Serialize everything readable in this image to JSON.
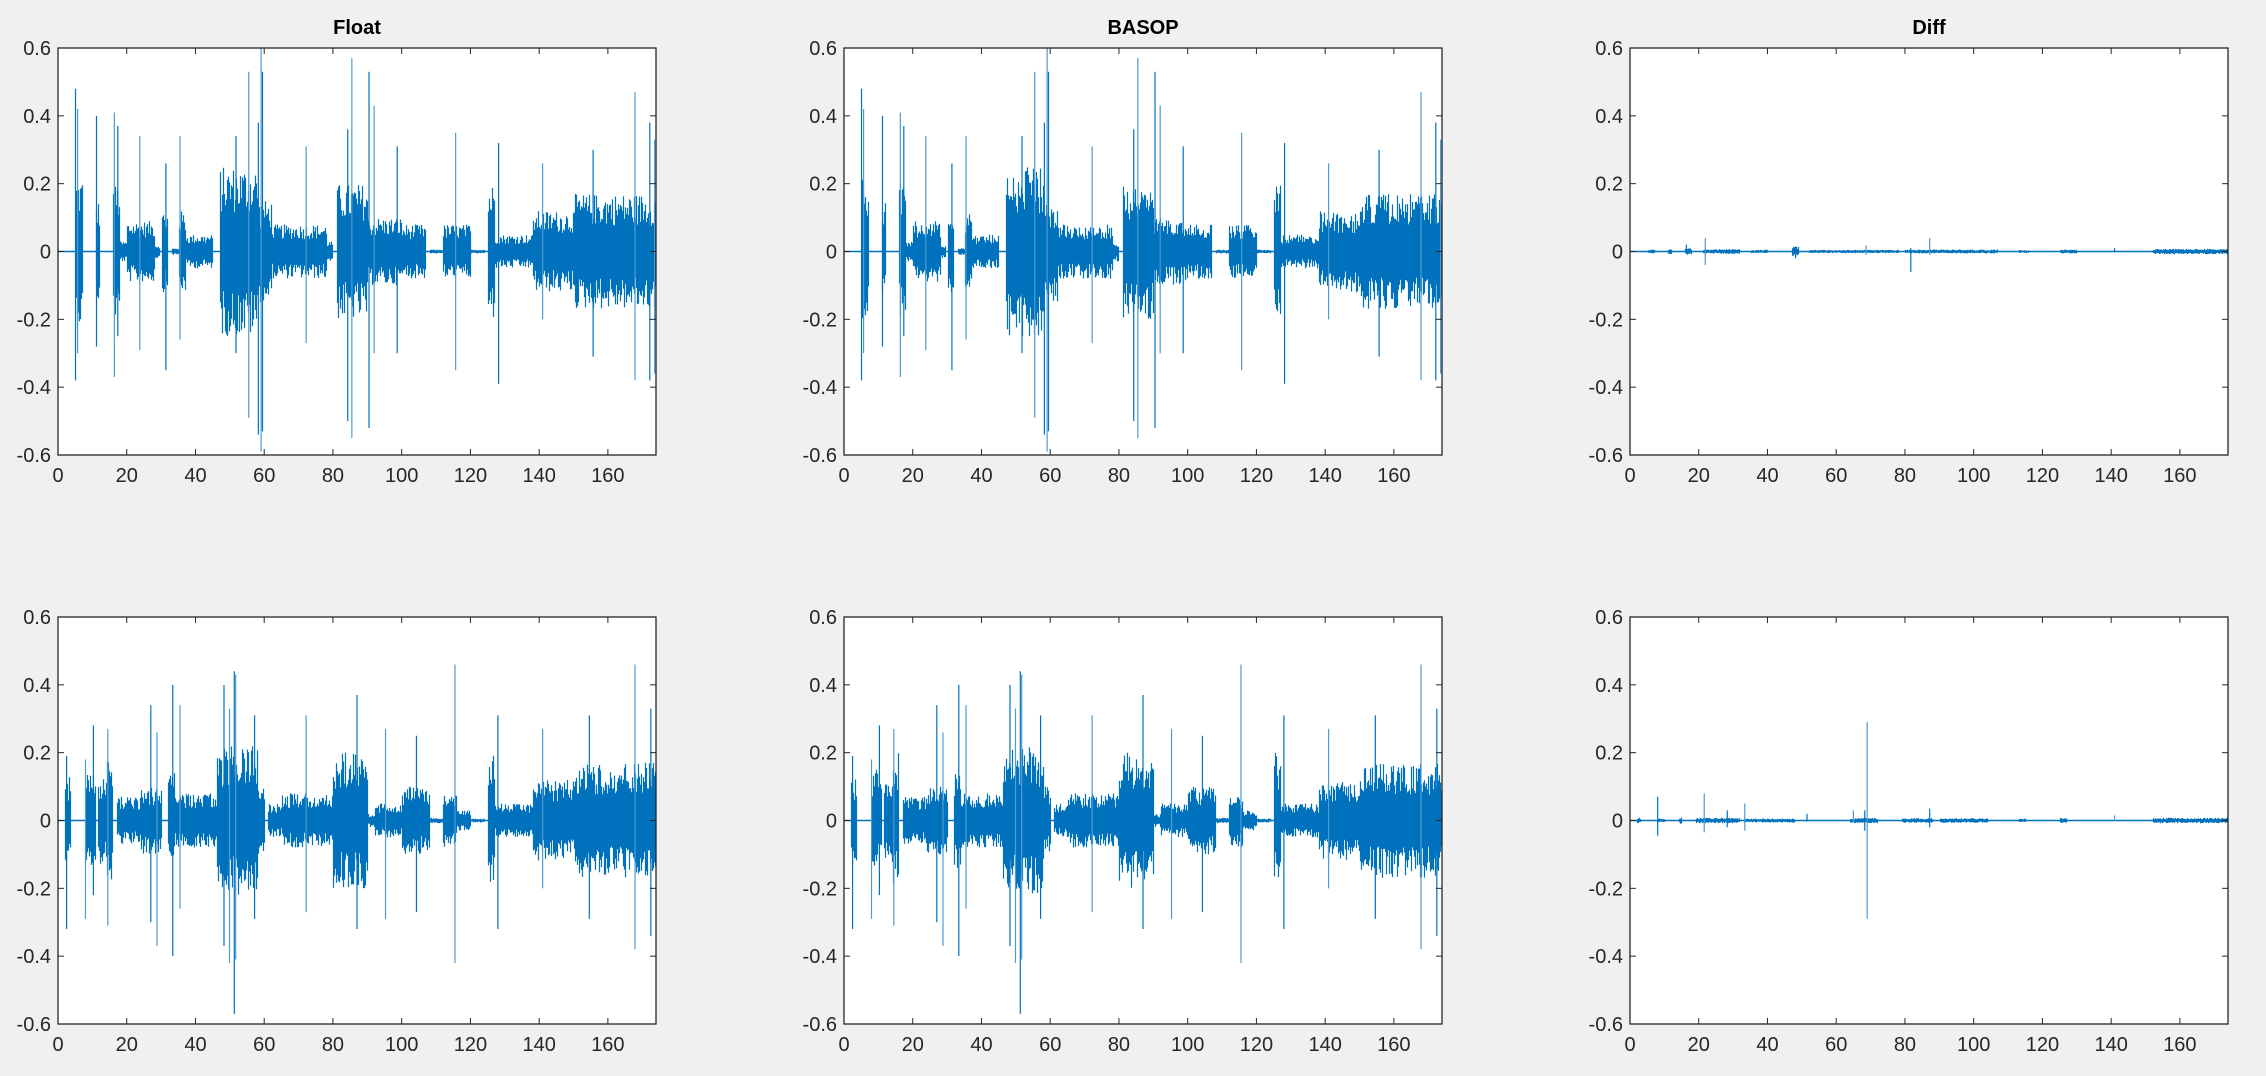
{
  "figure": {
    "background": "#f0f0f0",
    "line_color": "#0072bd",
    "spike_color": "#4f9bd3"
  },
  "chart_data": [
    {
      "type": "line",
      "title": "Float",
      "xlim": [
        0,
        174
      ],
      "ylim": [
        -0.6,
        0.6
      ],
      "grid": false,
      "xticks": [
        "0",
        "20",
        "40",
        "60",
        "80",
        "100",
        "120",
        "140",
        "160"
      ],
      "yticks": [
        "0.6",
        "0.4",
        "0.2",
        "0",
        "-0.2",
        "-0.4",
        "-0.6"
      ],
      "envelope": [
        [
          5,
          7,
          0.22
        ],
        [
          11,
          12,
          0.15
        ],
        [
          16,
          18,
          0.2
        ],
        [
          18,
          20,
          0.03
        ],
        [
          20,
          28,
          0.09
        ],
        [
          28,
          29.5,
          0.02
        ],
        [
          30,
          32,
          0.12
        ],
        [
          33,
          35,
          0.01
        ],
        [
          35,
          37,
          0.12
        ],
        [
          37,
          45,
          0.05
        ],
        [
          47,
          58,
          0.25
        ],
        [
          58,
          62,
          0.15
        ],
        [
          62,
          78,
          0.08
        ],
        [
          78,
          80,
          0.03
        ],
        [
          81,
          90,
          0.2
        ],
        [
          90,
          100,
          0.1
        ],
        [
          100,
          107,
          0.08
        ],
        [
          108,
          112,
          0.006
        ],
        [
          112,
          120,
          0.08
        ],
        [
          120,
          124,
          0.006
        ],
        [
          125,
          127,
          0.2
        ],
        [
          127,
          131,
          0.05
        ],
        [
          131,
          138,
          0.05
        ],
        [
          138,
          150,
          0.12
        ],
        [
          150,
          174,
          0.17
        ]
      ],
      "spikes": [
        [
          5.1,
          0.48,
          -0.38
        ],
        [
          5.7,
          0.42,
          -0.3
        ],
        [
          11.2,
          0.4,
          -0.28
        ],
        [
          16.4,
          0.41,
          -0.37
        ],
        [
          17.4,
          0.37,
          -0.25
        ],
        [
          23.8,
          0.34,
          -0.29
        ],
        [
          31.4,
          0.26,
          -0.35
        ],
        [
          35.5,
          0.34,
          -0.26
        ],
        [
          51.8,
          0.34,
          -0.3
        ],
        [
          55.5,
          0.53,
          -0.49
        ],
        [
          58.3,
          0.38,
          -0.54
        ],
        [
          59.1,
          0.6,
          -0.59
        ],
        [
          59.5,
          0.53,
          -0.53
        ],
        [
          72.2,
          0.31,
          -0.27
        ],
        [
          84.3,
          0.36,
          -0.5
        ],
        [
          85.5,
          0.57,
          -0.55
        ],
        [
          90.5,
          0.53,
          -0.52
        ],
        [
          92,
          0.43,
          -0.3
        ],
        [
          98.7,
          0.31,
          -0.3
        ],
        [
          115.7,
          0.35,
          -0.35
        ],
        [
          128.2,
          0.32,
          -0.39
        ],
        [
          141,
          0.26,
          -0.2
        ],
        [
          155.7,
          0.3,
          -0.31
        ],
        [
          167.9,
          0.47,
          -0.38
        ],
        [
          172.2,
          0.38,
          -0.38
        ],
        [
          173.6,
          0.33,
          -0.36
        ]
      ]
    },
    {
      "type": "line",
      "title": "BASOP",
      "xlim": [
        0,
        174
      ],
      "ylim": [
        -0.6,
        0.6
      ],
      "grid": false,
      "xticks": [
        "0",
        "20",
        "40",
        "60",
        "80",
        "100",
        "120",
        "140",
        "160"
      ],
      "yticks": [
        "0.6",
        "0.4",
        "0.2",
        "0",
        "-0.2",
        "-0.4",
        "-0.6"
      ],
      "envelope": [
        [
          5,
          7,
          0.22
        ],
        [
          11,
          12,
          0.15
        ],
        [
          16,
          18,
          0.2
        ],
        [
          18,
          20,
          0.03
        ],
        [
          20,
          28,
          0.09
        ],
        [
          28,
          29.5,
          0.02
        ],
        [
          30,
          32,
          0.12
        ],
        [
          33,
          35,
          0.01
        ],
        [
          35,
          37,
          0.12
        ],
        [
          37,
          45,
          0.05
        ],
        [
          47,
          58,
          0.25
        ],
        [
          58,
          62,
          0.15
        ],
        [
          62,
          78,
          0.08
        ],
        [
          78,
          80,
          0.03
        ],
        [
          81,
          90,
          0.2
        ],
        [
          90,
          100,
          0.1
        ],
        [
          100,
          107,
          0.08
        ],
        [
          108,
          112,
          0.006
        ],
        [
          112,
          120,
          0.08
        ],
        [
          120,
          124,
          0.006
        ],
        [
          125,
          127,
          0.2
        ],
        [
          127,
          131,
          0.05
        ],
        [
          131,
          138,
          0.05
        ],
        [
          138,
          150,
          0.12
        ],
        [
          150,
          174,
          0.17
        ]
      ],
      "spikes": [
        [
          5.1,
          0.48,
          -0.38
        ],
        [
          5.7,
          0.42,
          -0.3
        ],
        [
          11.2,
          0.4,
          -0.28
        ],
        [
          16.4,
          0.41,
          -0.37
        ],
        [
          17.4,
          0.37,
          -0.25
        ],
        [
          23.8,
          0.34,
          -0.29
        ],
        [
          31.4,
          0.26,
          -0.35
        ],
        [
          35.5,
          0.34,
          -0.26
        ],
        [
          51.8,
          0.34,
          -0.3
        ],
        [
          55.5,
          0.53,
          -0.49
        ],
        [
          58.3,
          0.38,
          -0.54
        ],
        [
          59.1,
          0.6,
          -0.59
        ],
        [
          59.5,
          0.53,
          -0.53
        ],
        [
          72.2,
          0.31,
          -0.27
        ],
        [
          84.3,
          0.36,
          -0.5
        ],
        [
          85.5,
          0.57,
          -0.55
        ],
        [
          90.5,
          0.53,
          -0.52
        ],
        [
          92,
          0.43,
          -0.3
        ],
        [
          98.7,
          0.31,
          -0.3
        ],
        [
          115.7,
          0.35,
          -0.35
        ],
        [
          128.2,
          0.32,
          -0.39
        ],
        [
          141,
          0.26,
          -0.2
        ],
        [
          155.7,
          0.3,
          -0.31
        ],
        [
          167.9,
          0.47,
          -0.38
        ],
        [
          172.2,
          0.38,
          -0.38
        ],
        [
          173.6,
          0.33,
          -0.36
        ]
      ]
    },
    {
      "type": "line",
      "title": "Diff",
      "xlim": [
        0,
        174
      ],
      "ylim": [
        -0.6,
        0.6
      ],
      "grid": false,
      "xticks": [
        "0",
        "20",
        "40",
        "60",
        "80",
        "100",
        "120",
        "140",
        "160"
      ],
      "yticks": [
        "0.6",
        "0.4",
        "0.2",
        "0",
        "-0.2",
        "-0.4",
        "-0.6"
      ],
      "envelope": [
        [
          5,
          7,
          0.006
        ],
        [
          11,
          12,
          0.008
        ],
        [
          16,
          18,
          0.01
        ],
        [
          21,
          32,
          0.007
        ],
        [
          35,
          40,
          0.005
        ],
        [
          47,
          49,
          0.015
        ],
        [
          52,
          78,
          0.005
        ],
        [
          80,
          107,
          0.006
        ],
        [
          113,
          116,
          0.005
        ],
        [
          125,
          130,
          0.006
        ],
        [
          152,
          174,
          0.008
        ]
      ],
      "spikes": [
        [
          16.4,
          0.02,
          -0.005
        ],
        [
          21.9,
          0.04,
          -0.04
        ],
        [
          48.2,
          0.015,
          -0.02
        ],
        [
          68.7,
          0.018,
          -0.01
        ],
        [
          81.7,
          0.01,
          -0.06
        ],
        [
          87.2,
          0.04,
          -0.01
        ],
        [
          141,
          0.01,
          -0.002
        ]
      ]
    },
    {
      "type": "line",
      "xlim": [
        0,
        174
      ],
      "ylim": [
        -0.6,
        0.6
      ],
      "grid": false,
      "xticks": [
        "0",
        "20",
        "40",
        "60",
        "80",
        "100",
        "120",
        "140",
        "160"
      ],
      "yticks": [
        "0.6",
        "0.4",
        "0.2",
        "0",
        "-0.2",
        "-0.4",
        "-0.6"
      ],
      "envelope": [
        [
          2,
          3.5,
          0.13
        ],
        [
          8,
          11,
          0.15
        ],
        [
          11.5,
          14,
          0.13
        ],
        [
          14,
          16,
          0.2
        ],
        [
          17,
          24,
          0.07
        ],
        [
          24,
          30,
          0.1
        ],
        [
          32,
          34,
          0.15
        ],
        [
          34,
          46,
          0.08
        ],
        [
          46,
          58,
          0.22
        ],
        [
          58,
          60,
          0.1
        ],
        [
          61,
          65,
          0.05
        ],
        [
          65,
          80,
          0.08
        ],
        [
          80,
          90,
          0.2
        ],
        [
          90,
          92,
          0.02
        ],
        [
          92,
          100,
          0.05
        ],
        [
          100,
          108,
          0.1
        ],
        [
          108,
          112,
          0.008
        ],
        [
          112,
          116,
          0.08
        ],
        [
          116,
          120,
          0.03
        ],
        [
          120,
          124,
          0.006
        ],
        [
          125,
          127,
          0.2
        ],
        [
          127,
          131,
          0.05
        ],
        [
          131,
          138,
          0.05
        ],
        [
          138,
          150,
          0.12
        ],
        [
          150,
          174,
          0.17
        ]
      ],
      "spikes": [
        [
          2.5,
          0.19,
          -0.32
        ],
        [
          8,
          0.18,
          -0.29
        ],
        [
          10.3,
          0.28,
          -0.22
        ],
        [
          14.5,
          0.27,
          -0.31
        ],
        [
          27,
          0.34,
          -0.3
        ],
        [
          28.8,
          0.26,
          -0.37
        ],
        [
          33.4,
          0.4,
          -0.4
        ],
        [
          35.5,
          0.34,
          -0.26
        ],
        [
          48.3,
          0.4,
          -0.37
        ],
        [
          49.9,
          0.33,
          -0.42
        ],
        [
          51.3,
          0.44,
          -0.57
        ],
        [
          51.7,
          0.43,
          -0.41
        ],
        [
          57.2,
          0.31,
          -0.29
        ],
        [
          72.2,
          0.31,
          -0.27
        ],
        [
          87,
          0.37,
          -0.32
        ],
        [
          95.3,
          0.27,
          -0.29
        ],
        [
          104.3,
          0.25,
          -0.27
        ],
        [
          115.5,
          0.46,
          -0.42
        ],
        [
          128,
          0.31,
          -0.32
        ],
        [
          141,
          0.27,
          -0.2
        ],
        [
          154.6,
          0.31,
          -0.29
        ],
        [
          167.9,
          0.46,
          -0.38
        ],
        [
          172.5,
          0.33,
          -0.34
        ]
      ]
    },
    {
      "type": "line",
      "xlim": [
        0,
        174
      ],
      "ylim": [
        -0.6,
        0.6
      ],
      "grid": false,
      "xticks": [
        "0",
        "20",
        "40",
        "60",
        "80",
        "100",
        "120",
        "140",
        "160"
      ],
      "yticks": [
        "0.6",
        "0.4",
        "0.2",
        "0",
        "-0.2",
        "-0.4",
        "-0.6"
      ],
      "envelope": [
        [
          2,
          3.5,
          0.13
        ],
        [
          8,
          11,
          0.15
        ],
        [
          11.5,
          14,
          0.13
        ],
        [
          14,
          16,
          0.2
        ],
        [
          17,
          24,
          0.07
        ],
        [
          24,
          30,
          0.1
        ],
        [
          32,
          34,
          0.15
        ],
        [
          34,
          46,
          0.08
        ],
        [
          46,
          58,
          0.22
        ],
        [
          58,
          60,
          0.1
        ],
        [
          61,
          65,
          0.05
        ],
        [
          65,
          80,
          0.08
        ],
        [
          80,
          90,
          0.2
        ],
        [
          90,
          92,
          0.02
        ],
        [
          92,
          100,
          0.05
        ],
        [
          100,
          108,
          0.1
        ],
        [
          108,
          112,
          0.008
        ],
        [
          112,
          116,
          0.08
        ],
        [
          116,
          120,
          0.03
        ],
        [
          120,
          124,
          0.006
        ],
        [
          125,
          127,
          0.2
        ],
        [
          127,
          131,
          0.05
        ],
        [
          131,
          138,
          0.05
        ],
        [
          138,
          150,
          0.12
        ],
        [
          150,
          174,
          0.17
        ]
      ],
      "spikes": [
        [
          2.5,
          0.19,
          -0.32
        ],
        [
          8,
          0.18,
          -0.29
        ],
        [
          10.3,
          0.28,
          -0.22
        ],
        [
          14.5,
          0.27,
          -0.31
        ],
        [
          27,
          0.34,
          -0.3
        ],
        [
          28.8,
          0.26,
          -0.37
        ],
        [
          33.4,
          0.4,
          -0.4
        ],
        [
          35.5,
          0.34,
          -0.26
        ],
        [
          48.3,
          0.4,
          -0.37
        ],
        [
          49.9,
          0.33,
          -0.42
        ],
        [
          51.3,
          0.44,
          -0.57
        ],
        [
          51.7,
          0.43,
          -0.41
        ],
        [
          57.2,
          0.31,
          -0.29
        ],
        [
          72.2,
          0.31,
          -0.27
        ],
        [
          87,
          0.37,
          -0.32
        ],
        [
          95.3,
          0.27,
          -0.29
        ],
        [
          104.3,
          0.25,
          -0.27
        ],
        [
          115.5,
          0.46,
          -0.42
        ],
        [
          128,
          0.31,
          -0.32
        ],
        [
          141,
          0.27,
          -0.2
        ],
        [
          154.6,
          0.31,
          -0.29
        ],
        [
          167.9,
          0.46,
          -0.38
        ],
        [
          172.5,
          0.33,
          -0.34
        ]
      ]
    },
    {
      "type": "line",
      "xlim": [
        0,
        174
      ],
      "ylim": [
        -0.6,
        0.6
      ],
      "grid": false,
      "xticks": [
        "0",
        "20",
        "40",
        "60",
        "80",
        "100",
        "120",
        "140",
        "160"
      ],
      "yticks": [
        "0.6",
        "0.4",
        "0.2",
        "0",
        "-0.2",
        "-0.4",
        "-0.6"
      ],
      "envelope": [
        [
          2,
          3,
          0.008
        ],
        [
          8,
          10,
          0.006
        ],
        [
          14,
          15,
          0.01
        ],
        [
          19,
          32,
          0.008
        ],
        [
          33,
          48,
          0.006
        ],
        [
          64,
          72,
          0.008
        ],
        [
          79,
          88,
          0.007
        ],
        [
          90,
          104,
          0.007
        ],
        [
          113,
          115,
          0.006
        ],
        [
          125,
          127,
          0.008
        ],
        [
          152,
          174,
          0.008
        ]
      ],
      "spikes": [
        [
          8.05,
          0.07,
          -0.045
        ],
        [
          21.6,
          0.08,
          -0.035
        ],
        [
          28.3,
          0.03,
          -0.02
        ],
        [
          33.4,
          0.05,
          -0.03
        ],
        [
          51.5,
          0.02,
          -0.003
        ],
        [
          65,
          0.03,
          -0.005
        ],
        [
          68.3,
          0.03,
          -0.03
        ],
        [
          69,
          0.29,
          -0.29
        ],
        [
          87.2,
          0.035,
          -0.02
        ],
        [
          141,
          0.015,
          -0.002
        ]
      ]
    }
  ]
}
